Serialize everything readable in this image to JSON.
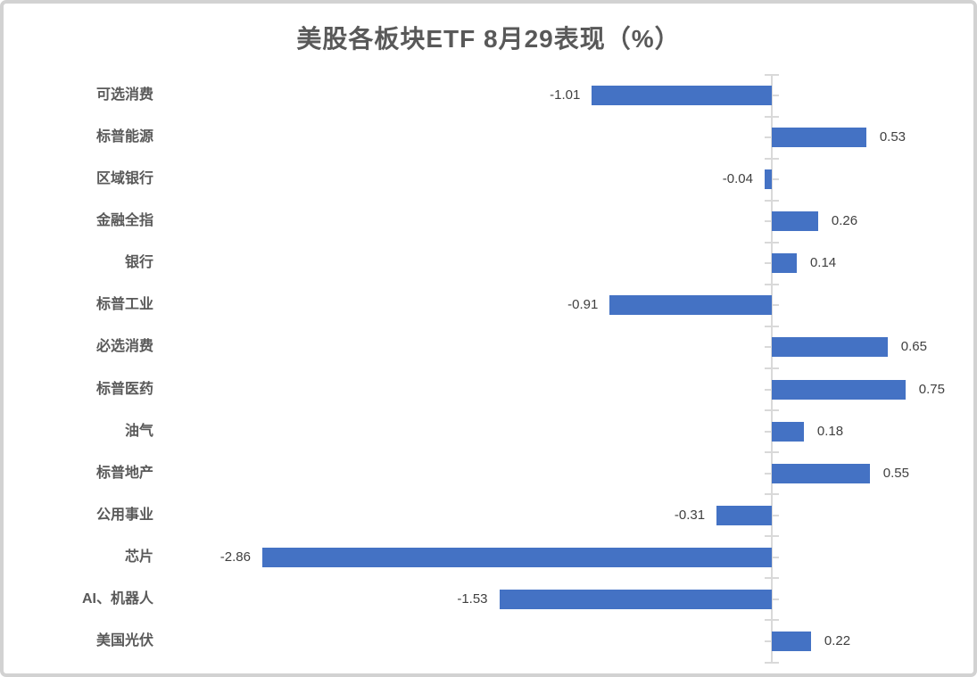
{
  "chart_data": {
    "type": "bar",
    "orientation": "horizontal",
    "title": "美股各板块ETF 8月29表现（%）",
    "categories": [
      "可选消费",
      "标普能源",
      "区域银行",
      "金融全指",
      "银行",
      "标普工业",
      "必选消费",
      "标普医药",
      "油气",
      "标普地产",
      "公用事业",
      "芯片",
      "AI、机器人",
      "美国光伏"
    ],
    "values": [
      -1.01,
      0.53,
      -0.04,
      0.26,
      0.14,
      -0.91,
      0.65,
      0.75,
      0.18,
      0.55,
      -0.31,
      -2.86,
      -1.53,
      0.22
    ],
    "value_labels": [
      "-1.01",
      "0.53",
      "-0.04",
      "0.26",
      "0.14",
      "-0.91",
      "0.65",
      "0.75",
      "0.18",
      "0.55",
      "-0.31",
      "-2.86",
      "-1.53",
      "0.22"
    ],
    "xlabel": "",
    "ylabel": "",
    "xlim": [
      -3.5,
      1.15
    ],
    "grid": false,
    "legend": "none",
    "data_labels": "outside-end",
    "colors": {
      "bar": "#4472C4",
      "axis": "#D9D9D9",
      "title_text": "#595959",
      "category_text": "#595959",
      "value_text": "#404040",
      "canvas_border": "#D2D2D2",
      "background": "#FFFFFF"
    }
  }
}
